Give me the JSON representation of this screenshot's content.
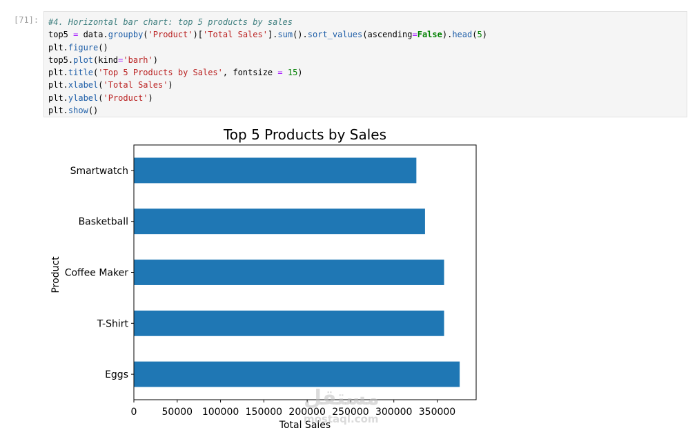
{
  "cell": {
    "prompt": "[71]:",
    "code_lines": [
      [
        {
          "t": "#4. Horizontal bar chart: top 5 products by sales",
          "c": "comment"
        }
      ],
      [
        {
          "t": "top5 ",
          "c": "plain"
        },
        {
          "t": "=",
          "c": "op"
        },
        {
          "t": " data.",
          "c": "plain"
        },
        {
          "t": "groupby",
          "c": "fn"
        },
        {
          "t": "(",
          "c": "plain"
        },
        {
          "t": "'Product'",
          "c": "str"
        },
        {
          "t": ")[",
          "c": "plain"
        },
        {
          "t": "'Total Sales'",
          "c": "str"
        },
        {
          "t": "].",
          "c": "plain"
        },
        {
          "t": "sum",
          "c": "fn"
        },
        {
          "t": "().",
          "c": "plain"
        },
        {
          "t": "sort_values",
          "c": "fn"
        },
        {
          "t": "(ascending",
          "c": "plain"
        },
        {
          "t": "=",
          "c": "op"
        },
        {
          "t": "False",
          "c": "kw"
        },
        {
          "t": ").",
          "c": "plain"
        },
        {
          "t": "head",
          "c": "fn"
        },
        {
          "t": "(",
          "c": "plain"
        },
        {
          "t": "5",
          "c": "num"
        },
        {
          "t": ")",
          "c": "plain"
        }
      ],
      [
        {
          "t": "plt.",
          "c": "plain"
        },
        {
          "t": "figure",
          "c": "fn"
        },
        {
          "t": "()",
          "c": "plain"
        }
      ],
      [
        {
          "t": "top5.",
          "c": "plain"
        },
        {
          "t": "plot",
          "c": "fn"
        },
        {
          "t": "(kind",
          "c": "plain"
        },
        {
          "t": "=",
          "c": "op"
        },
        {
          "t": "'barh'",
          "c": "str"
        },
        {
          "t": ")",
          "c": "plain"
        }
      ],
      [
        {
          "t": "plt.",
          "c": "plain"
        },
        {
          "t": "title",
          "c": "fn"
        },
        {
          "t": "(",
          "c": "plain"
        },
        {
          "t": "'Top 5 Products by Sales'",
          "c": "str"
        },
        {
          "t": ", fontsize ",
          "c": "plain"
        },
        {
          "t": "=",
          "c": "op"
        },
        {
          "t": " ",
          "c": "plain"
        },
        {
          "t": "15",
          "c": "num"
        },
        {
          "t": ")",
          "c": "plain"
        }
      ],
      [
        {
          "t": "plt.",
          "c": "plain"
        },
        {
          "t": "xlabel",
          "c": "fn"
        },
        {
          "t": "(",
          "c": "plain"
        },
        {
          "t": "'Total Sales'",
          "c": "str"
        },
        {
          "t": ")",
          "c": "plain"
        }
      ],
      [
        {
          "t": "plt.",
          "c": "plain"
        },
        {
          "t": "ylabel",
          "c": "fn"
        },
        {
          "t": "(",
          "c": "plain"
        },
        {
          "t": "'Product'",
          "c": "str"
        },
        {
          "t": ")",
          "c": "plain"
        }
      ],
      [
        {
          "t": "plt.",
          "c": "plain"
        },
        {
          "t": "show",
          "c": "fn"
        },
        {
          "t": "()",
          "c": "plain"
        }
      ]
    ]
  },
  "watermark": {
    "arabic": "مستقل",
    "url": "mostaql.com"
  },
  "chart_data": {
    "type": "bar",
    "orientation": "horizontal",
    "title": "Top 5 Products by Sales",
    "xlabel": "Total Sales",
    "ylabel": "Product",
    "categories": [
      "Eggs",
      "T-Shirt",
      "Coffee Maker",
      "Basketball",
      "Smartwatch"
    ],
    "values": [
      376000,
      358000,
      358000,
      336000,
      326000
    ],
    "xlim": [
      0,
      395000
    ],
    "xticks": [
      0,
      50000,
      100000,
      150000,
      200000,
      250000,
      300000,
      350000
    ],
    "xtick_labels": [
      "0",
      "50000",
      "100000",
      "150000",
      "200000",
      "250000",
      "300000",
      "350000"
    ],
    "bar_color": "#1f77b4",
    "grid": false,
    "legend": "none"
  }
}
